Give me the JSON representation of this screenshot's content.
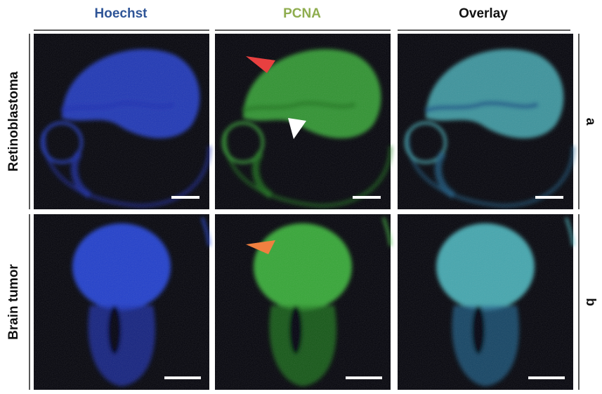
{
  "columns": [
    "Hoechst",
    "PCNA",
    "Overlay"
  ],
  "rows": [
    {
      "label": "Retinoblastoma",
      "letter": "a"
    },
    {
      "label": "Brain tumor",
      "letter": "b"
    }
  ]
}
